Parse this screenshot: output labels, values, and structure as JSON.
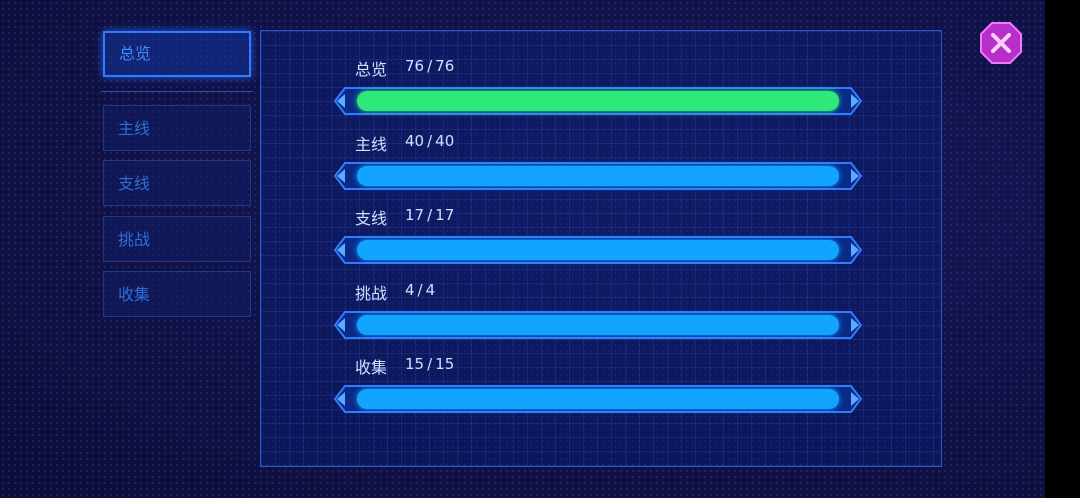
{
  "tabs": [
    "总览",
    "主线",
    "支线",
    "挑战",
    "收集"
  ],
  "active_tab": 0,
  "separator": "/",
  "rows": [
    {
      "label": "总览",
      "current": 76,
      "total": 76,
      "color": "#2ee87a"
    },
    {
      "label": "主线",
      "current": 40,
      "total": 40,
      "color": "#12a4ff"
    },
    {
      "label": "支线",
      "current": 17,
      "total": 17,
      "color": "#12a4ff"
    },
    {
      "label": "挑战",
      "current": 4,
      "total": 4,
      "color": "#12a4ff"
    },
    {
      "label": "收集",
      "current": 15,
      "total": 15,
      "color": "#12a4ff"
    }
  ]
}
